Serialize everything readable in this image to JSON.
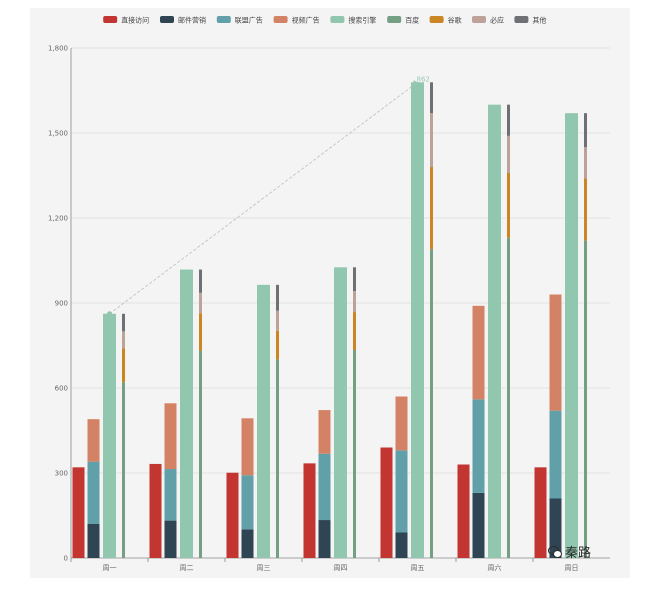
{
  "chart_data": {
    "type": "bar",
    "title": "",
    "xlabel": "",
    "ylabel": "",
    "categories": [
      "周一",
      "周二",
      "周三",
      "周四",
      "周五",
      "周六",
      "周日"
    ],
    "ylim": [
      0,
      1800
    ],
    "yticks": [
      "0",
      "300",
      "600",
      "900",
      "1,200",
      "1,500",
      "1,800"
    ],
    "legend_position": "top",
    "grid": true,
    "series": [
      {
        "name": "直接访问",
        "stack": "a",
        "color": "#c23531",
        "values": [
          320,
          332,
          301,
          334,
          390,
          330,
          320
        ]
      },
      {
        "name": "邮件营销",
        "stack": "b",
        "color": "#2f4554",
        "values": [
          120,
          132,
          101,
          134,
          90,
          230,
          210
        ]
      },
      {
        "name": "联盟广告",
        "stack": "b",
        "color": "#61a0a8",
        "values": [
          220,
          182,
          191,
          234,
          290,
          330,
          310
        ]
      },
      {
        "name": "视频广告",
        "stack": "b",
        "color": "#d48265",
        "values": [
          150,
          232,
          201,
          154,
          190,
          330,
          410
        ]
      },
      {
        "name": "搜索引擎",
        "stack": "c",
        "color": "#91c7ae",
        "values": [
          862,
          1018,
          964,
          1026,
          1679,
          1600,
          1570
        ]
      },
      {
        "name": "百度",
        "stack": "d",
        "color": "#749f83",
        "values": [
          620,
          732,
          701,
          734,
          1090,
          1130,
          1120
        ]
      },
      {
        "name": "谷歌",
        "stack": "d",
        "color": "#ca8622",
        "values": [
          120,
          132,
          101,
          134,
          290,
          230,
          220
        ]
      },
      {
        "name": "必应",
        "stack": "d",
        "color": "#bda29a",
        "values": [
          60,
          72,
          71,
          74,
          190,
          130,
          110
        ]
      },
      {
        "name": "其他",
        "stack": "d",
        "color": "#6e7074",
        "values": [
          62,
          82,
          91,
          84,
          109,
          110,
          120
        ]
      }
    ],
    "annotations": [
      {
        "type": "markLine",
        "series": "搜索引擎",
        "from": "周一",
        "to": "周五",
        "from_value": 862,
        "to_value": 1679,
        "end_label": "862"
      }
    ]
  },
  "watermark": {
    "text": "秦路"
  }
}
